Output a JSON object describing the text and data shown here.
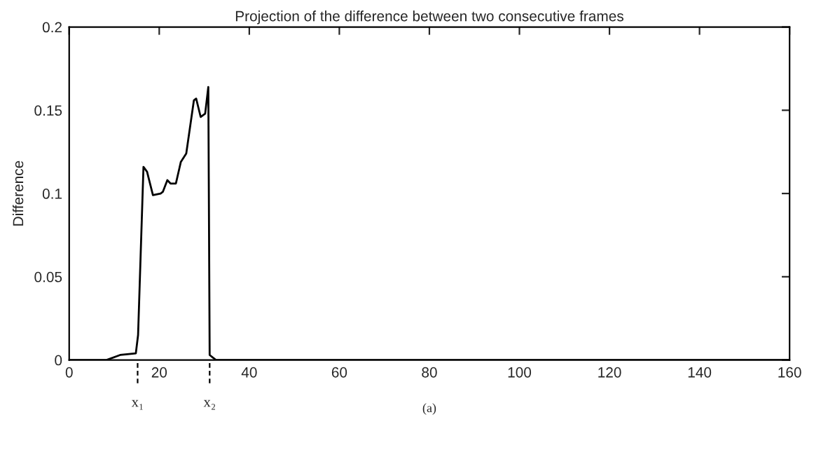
{
  "chart_data": {
    "type": "line",
    "title": "Projection of the difference between two consecutive frames",
    "ylabel": "Difference",
    "series": [
      {
        "color": "#000000",
        "x": [
          0,
          8.3,
          11.3,
          14.8,
          15.3,
          16.5,
          17.3,
          18.6,
          20.3,
          20.8,
          21.8,
          22.5,
          23.7,
          24.8,
          26,
          27.7,
          28.2,
          29.2,
          30.2,
          30.9,
          31.2,
          32.6,
          160
        ],
        "values": [
          0,
          0,
          0.003,
          0.004,
          0.015,
          0.116,
          0.113,
          0.099,
          0.1,
          0.101,
          0.108,
          0.106,
          0.106,
          0.119,
          0.124,
          0.156,
          0.157,
          0.146,
          0.148,
          0.164,
          0.003,
          0,
          0
        ]
      }
    ],
    "xlim": [
      0,
      160
    ],
    "xticks": [
      0,
      20,
      40,
      60,
      80,
      100,
      120,
      140,
      160
    ],
    "ylim": [
      0,
      0.2
    ],
    "yticks": [
      0,
      0.05,
      0.1,
      0.15,
      0.2
    ],
    "ref_lines": [
      {
        "axis": "x",
        "value": 15.2,
        "label": "x₁",
        "color": "#000000"
      },
      {
        "axis": "x",
        "value": 31.2,
        "label": "x₂",
        "color": "#000000"
      }
    ],
    "annotations": [
      "(a)"
    ],
    "grid": false,
    "legend": false,
    "marker": "none",
    "line_style": "solid"
  }
}
